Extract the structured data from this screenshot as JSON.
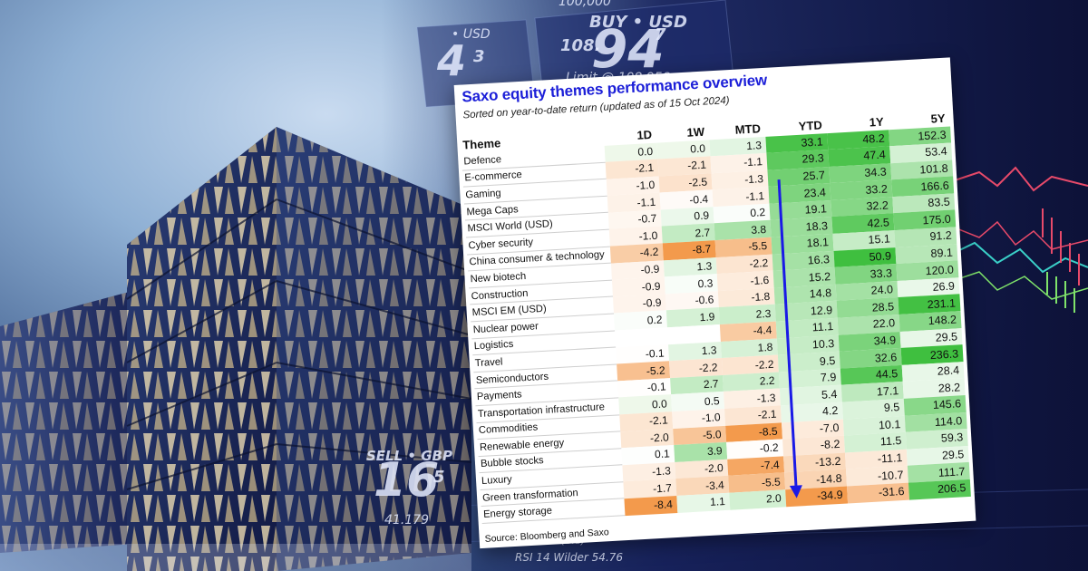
{
  "ticker": {
    "top_value": "100,000",
    "buy_label": "BUY • USD",
    "price_prefix": "108.",
    "price_big": "94",
    "price_sup": "7",
    "limit_text": "Limit @ 108.958",
    "left_price_label": "• USD",
    "left_price_digits": "4",
    "left_price_sup": "3",
    "gbp_label": "SELL • GBP",
    "gbp_digits": "16",
    "gbp_sup": "5",
    "gbp_sub": "41.179",
    "rsi_text": "RSI 14 Wilder 54.76",
    "bid_text": "20/09/50 (Bid)"
  },
  "table": {
    "title": "Saxo equity themes performance overview",
    "subtitle": "Sorted on year-to-date return (updated as of 15 Oct 2024)",
    "source": "Source: Bloomberg and Saxo",
    "headers": {
      "theme": "Theme",
      "d1": "1D",
      "w1": "1W",
      "mtd": "MTD",
      "ytd": "YTD",
      "y1": "1Y",
      "y5": "5Y"
    },
    "rows": [
      {
        "theme": "Defence",
        "d1": "0.0",
        "w1": "0.0",
        "mtd": "1.3",
        "ytd": "33.1",
        "y1": "48.2",
        "y5": "152.3"
      },
      {
        "theme": "E-commerce",
        "d1": "-2.1",
        "w1": "-2.1",
        "mtd": "-1.1",
        "ytd": "29.3",
        "y1": "47.4",
        "y5": "53.4"
      },
      {
        "theme": "Gaming",
        "d1": "-1.0",
        "w1": "-2.5",
        "mtd": "-1.3",
        "ytd": "25.7",
        "y1": "34.3",
        "y5": "101.8"
      },
      {
        "theme": "Mega Caps",
        "d1": "-1.1",
        "w1": "-0.4",
        "mtd": "-1.1",
        "ytd": "23.4",
        "y1": "33.2",
        "y5": "166.6"
      },
      {
        "theme": "MSCI World (USD)",
        "d1": "-0.7",
        "w1": "0.9",
        "mtd": "0.2",
        "ytd": "19.1",
        "y1": "32.2",
        "y5": "83.5"
      },
      {
        "theme": "Cyber security",
        "d1": "-1.0",
        "w1": "2.7",
        "mtd": "3.8",
        "ytd": "18.3",
        "y1": "42.5",
        "y5": "175.0"
      },
      {
        "theme": "China consumer & technology",
        "d1": "-4.2",
        "w1": "-8.7",
        "mtd": "-5.5",
        "ytd": "18.1",
        "y1": "15.1",
        "y5": "91.2"
      },
      {
        "theme": "New biotech",
        "d1": "-0.9",
        "w1": "1.3",
        "mtd": "-2.2",
        "ytd": "16.3",
        "y1": "50.9",
        "y5": "89.1"
      },
      {
        "theme": "Construction",
        "d1": "-0.9",
        "w1": "0.3",
        "mtd": "-1.6",
        "ytd": "15.2",
        "y1": "33.3",
        "y5": "120.0"
      },
      {
        "theme": "MSCI EM (USD)",
        "d1": "-0.9",
        "w1": "-0.6",
        "mtd": "-1.8",
        "ytd": "14.8",
        "y1": "24.0",
        "y5": "26.9"
      },
      {
        "theme": "Nuclear power",
        "d1": "0.2",
        "w1": "1.9",
        "mtd": "2.3",
        "ytd": "12.9",
        "y1": "28.5",
        "y5": "231.1"
      },
      {
        "theme": "Logistics",
        "d1": "",
        "w1": "",
        "mtd": "-4.4",
        "ytd": "11.1",
        "y1": "22.0",
        "y5": "148.2"
      },
      {
        "theme": "Travel",
        "d1": "-0.1",
        "w1": "1.3",
        "mtd": "1.8",
        "ytd": "10.3",
        "y1": "34.9",
        "y5": "29.5"
      },
      {
        "theme": "Semiconductors",
        "d1": "-5.2",
        "w1": "-2.2",
        "mtd": "-2.2",
        "ytd": "9.5",
        "y1": "32.6",
        "y5": "236.3"
      },
      {
        "theme": "Payments",
        "d1": "-0.1",
        "w1": "2.7",
        "mtd": "2.2",
        "ytd": "7.9",
        "y1": "44.5",
        "y5": "28.4"
      },
      {
        "theme": "Transportation infrastructure",
        "d1": "0.0",
        "w1": "0.5",
        "mtd": "-1.3",
        "ytd": "5.4",
        "y1": "17.1",
        "y5": "28.2"
      },
      {
        "theme": "Commodities",
        "d1": "-2.1",
        "w1": "-1.0",
        "mtd": "-2.1",
        "ytd": "4.2",
        "y1": "9.5",
        "y5": "145.6"
      },
      {
        "theme": "Renewable energy",
        "d1": "-2.0",
        "w1": "-5.0",
        "mtd": "-8.5",
        "ytd": "-7.0",
        "y1": "10.1",
        "y5": "114.0"
      },
      {
        "theme": "Bubble stocks",
        "d1": "0.1",
        "w1": "3.9",
        "mtd": "-0.2",
        "ytd": "-8.2",
        "y1": "11.5",
        "y5": "59.3"
      },
      {
        "theme": "Luxury",
        "d1": "-1.3",
        "w1": "-2.0",
        "mtd": "-7.4",
        "ytd": "-13.2",
        "y1": "-11.1",
        "y5": "29.5"
      },
      {
        "theme": "Green transformation",
        "d1": "-1.7",
        "w1": "-3.4",
        "mtd": "-5.5",
        "ytd": "-14.8",
        "y1": "-10.7",
        "y5": "111.7"
      },
      {
        "theme": "Energy storage",
        "d1": "-8.4",
        "w1": "1.1",
        "mtd": "2.0",
        "ytd": "-34.9",
        "y1": "-31.6",
        "y5": "206.5"
      }
    ],
    "colors": {
      "title": "#1c1fd8",
      "arrow": "#1a1ae6",
      "neg_strong": "#f39a4c",
      "pos_strong": "#3fbf3f"
    },
    "column_max_abs": {
      "d1": 8.4,
      "w1": 8.7,
      "mtd": 8.5,
      "ytd": 34.9,
      "y1": 50.9,
      "y5": 236.3
    }
  }
}
